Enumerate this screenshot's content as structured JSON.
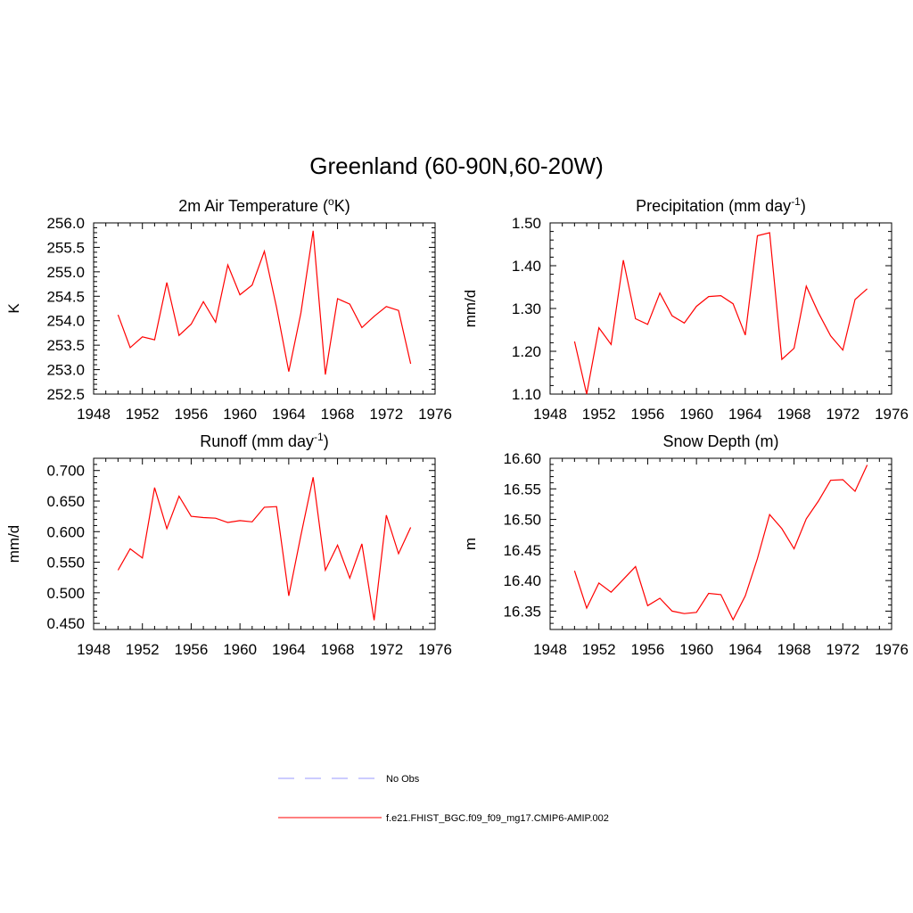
{
  "figure": {
    "title": "Greenland (60-90N,60-20W)",
    "legend": {
      "items": [
        {
          "label": "No Obs",
          "color": "#9999ff",
          "dashed": true
        },
        {
          "label": "f.e21.FHIST_BGC.f09_f09_mg17.CMIP6-AMIP.002",
          "color": "#ff0000",
          "dashed": false
        }
      ]
    }
  },
  "chart_data": [
    {
      "type": "line",
      "title": "2m Air Temperature (",
      "title_sup": "o",
      "title_suffix": "K)",
      "xlabel": "",
      "ylabel": "K",
      "xlim": [
        1948,
        1976
      ],
      "ylim": [
        252.5,
        256.0
      ],
      "xticks": [
        1948,
        1952,
        1956,
        1960,
        1964,
        1968,
        1972,
        1976
      ],
      "yticks": [
        "252.5",
        "253.0",
        "253.5",
        "254.0",
        "254.5",
        "255.0",
        "255.5",
        "256.0"
      ],
      "grid": false,
      "series": [
        {
          "color": "#ff0000",
          "x": [
            1950,
            1951,
            1952,
            1953,
            1954,
            1955,
            1956,
            1957,
            1958,
            1959,
            1960,
            1961,
            1962,
            1963,
            1964,
            1965,
            1966,
            1967,
            1968,
            1969,
            1970,
            1971,
            1972,
            1973,
            1974
          ],
          "y": [
            254.12,
            253.45,
            253.67,
            253.61,
            254.78,
            253.7,
            253.93,
            254.39,
            253.97,
            255.14,
            254.53,
            254.73,
            255.42,
            254.27,
            252.96,
            254.16,
            255.84,
            252.9,
            254.45,
            254.34,
            253.86,
            254.09,
            254.29,
            254.21,
            253.12
          ]
        }
      ]
    },
    {
      "type": "line",
      "title": "Precipitation (mm day",
      "title_sup": "-1",
      "title_suffix": ")",
      "xlabel": "",
      "ylabel": "mm/d",
      "xlim": [
        1948,
        1976
      ],
      "ylim": [
        1.1,
        1.5
      ],
      "xticks": [
        1948,
        1952,
        1956,
        1960,
        1964,
        1968,
        1972,
        1976
      ],
      "yticks": [
        "1.10",
        "1.20",
        "1.30",
        "1.40",
        "1.50"
      ],
      "grid": false,
      "series": [
        {
          "color": "#ff0000",
          "x": [
            1950,
            1951,
            1952,
            1953,
            1954,
            1955,
            1956,
            1957,
            1958,
            1959,
            1960,
            1961,
            1962,
            1963,
            1964,
            1965,
            1966,
            1967,
            1968,
            1969,
            1970,
            1971,
            1972,
            1973,
            1974
          ],
          "y": [
            1.223,
            1.1,
            1.255,
            1.216,
            1.413,
            1.276,
            1.263,
            1.336,
            1.283,
            1.266,
            1.305,
            1.328,
            1.33,
            1.311,
            1.238,
            1.47,
            1.477,
            1.181,
            1.207,
            1.352,
            1.29,
            1.236,
            1.203,
            1.321,
            1.346
          ]
        }
      ]
    },
    {
      "type": "line",
      "title": "Runoff (mm day",
      "title_sup": "-1",
      "title_suffix": ")",
      "xlabel": "",
      "ylabel": "mm/d",
      "xlim": [
        1948,
        1976
      ],
      "ylim": [
        0.44,
        0.72
      ],
      "xticks": [
        1948,
        1952,
        1956,
        1960,
        1964,
        1968,
        1972,
        1976
      ],
      "yticks": [
        "0.450",
        "0.500",
        "0.550",
        "0.600",
        "0.650",
        "0.700"
      ],
      "grid": false,
      "series": [
        {
          "color": "#ff0000",
          "x": [
            1950,
            1951,
            1952,
            1953,
            1954,
            1955,
            1956,
            1957,
            1958,
            1959,
            1960,
            1961,
            1962,
            1963,
            1964,
            1965,
            1966,
            1967,
            1968,
            1969,
            1970,
            1971,
            1972,
            1973,
            1974
          ],
          "y": [
            0.537,
            0.572,
            0.557,
            0.672,
            0.605,
            0.658,
            0.625,
            0.623,
            0.622,
            0.615,
            0.618,
            0.616,
            0.64,
            0.641,
            0.495,
            0.594,
            0.689,
            0.537,
            0.578,
            0.524,
            0.58,
            0.455,
            0.627,
            0.564,
            0.607
          ]
        }
      ]
    },
    {
      "type": "line",
      "title": "Snow Depth (m)",
      "title_sup": "",
      "title_suffix": "",
      "xlabel": "",
      "ylabel": "m",
      "xlim": [
        1948,
        1976
      ],
      "ylim": [
        16.32,
        16.6
      ],
      "xticks": [
        1948,
        1952,
        1956,
        1960,
        1964,
        1968,
        1972,
        1976
      ],
      "yticks": [
        "16.35",
        "16.40",
        "16.45",
        "16.50",
        "16.55",
        "16.60"
      ],
      "grid": false,
      "series": [
        {
          "color": "#ff0000",
          "x": [
            1950,
            1951,
            1952,
            1953,
            1954,
            1955,
            1956,
            1957,
            1958,
            1959,
            1960,
            1961,
            1962,
            1963,
            1964,
            1965,
            1966,
            1967,
            1968,
            1969,
            1970,
            1971,
            1972,
            1973,
            1974
          ],
          "y": [
            16.416,
            16.355,
            16.396,
            16.381,
            16.402,
            16.423,
            16.359,
            16.371,
            16.35,
            16.346,
            16.348,
            16.379,
            16.377,
            16.336,
            16.375,
            16.436,
            16.508,
            16.485,
            16.452,
            16.501,
            16.53,
            16.564,
            16.565,
            16.546,
            16.589
          ]
        }
      ]
    }
  ]
}
